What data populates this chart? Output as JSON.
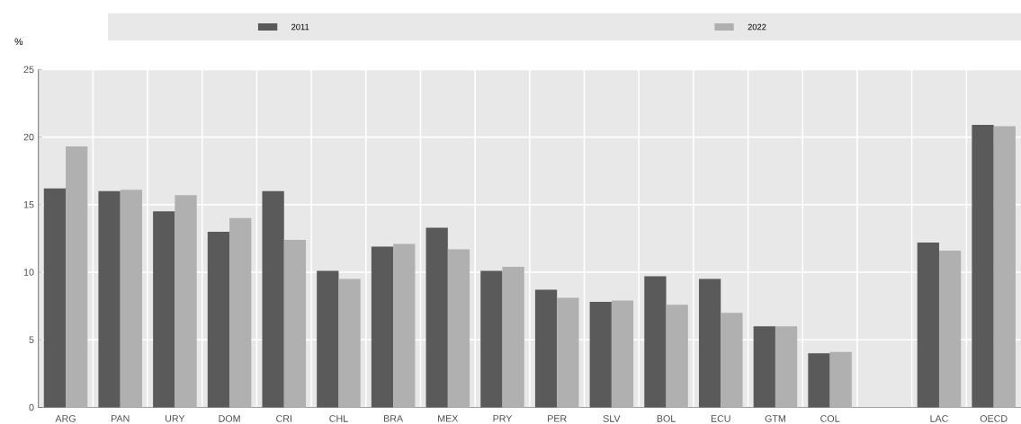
{
  "chart_data": {
    "type": "bar",
    "ylabel": "%",
    "categories": [
      "ARG",
      "PAN",
      "URY",
      "DOM",
      "CRI",
      "CHL",
      "BRA",
      "MEX",
      "PRY",
      "PER",
      "SLV",
      "BOL",
      "ECU",
      "GTM",
      "COL",
      null,
      "LAC",
      "OECD"
    ],
    "series": [
      {
        "name": "2011",
        "color": "#5a5a5a",
        "values": [
          16.2,
          16.0,
          14.5,
          13.0,
          16.0,
          10.1,
          11.9,
          13.3,
          10.1,
          8.7,
          7.8,
          9.7,
          9.5,
          6.0,
          4.0,
          null,
          12.2,
          20.9
        ]
      },
      {
        "name": "2022",
        "color": "#b0b0b0",
        "values": [
          19.3,
          16.1,
          15.7,
          14.0,
          12.4,
          9.5,
          12.1,
          11.7,
          10.4,
          8.1,
          7.9,
          7.6,
          7.0,
          6.0,
          4.1,
          null,
          11.6,
          20.8
        ]
      }
    ],
    "ylim": [
      0,
      25
    ],
    "yticks": [
      0,
      5,
      10,
      15,
      20,
      25
    ],
    "grid": true,
    "legend": "top"
  }
}
